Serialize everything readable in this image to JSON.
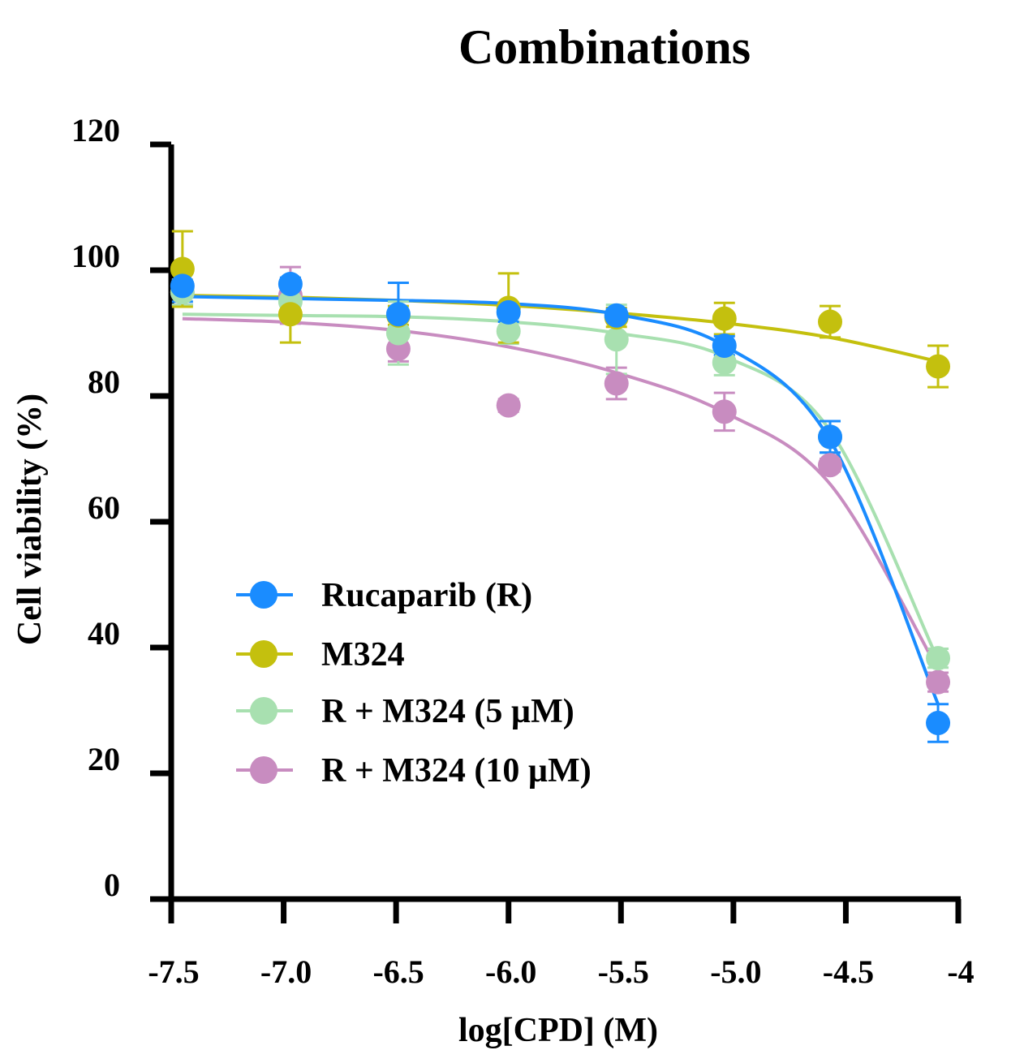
{
  "chart_data": {
    "type": "line",
    "title": "Combinations",
    "xlabel": "log[CPD] (M)",
    "ylabel": "Cell viability (%)",
    "xlim": [
      -7.55,
      -4.0
    ],
    "ylim": [
      0,
      120
    ],
    "x_ticks": [
      -7.5,
      -7.0,
      -6.5,
      -6.0,
      -5.5,
      -5.0,
      -4.5,
      -4.0
    ],
    "x_tick_labels": [
      "-7.5",
      "-7.0",
      "-6.5",
      "-6.0",
      "-5.5",
      "-5.0",
      "-4.5",
      "-4"
    ],
    "y_ticks": [
      0,
      20,
      40,
      60,
      80,
      100,
      120
    ],
    "y_tick_labels": [
      "0",
      "20",
      "40",
      "60",
      "80",
      "100",
      "120"
    ],
    "legend_position": "lower-left",
    "x": [
      -7.45,
      -6.97,
      -6.49,
      -6.0,
      -5.52,
      -5.04,
      -4.57,
      -4.09
    ],
    "series": [
      {
        "name": "Rucaparib (R)",
        "color": "#1a8cff",
        "values": [
          97.5,
          97.8,
          93.0,
          93.3,
          92.8,
          88.0,
          73.5,
          28.0
        ],
        "errors": [
          2.5,
          1.0,
          5.0,
          1.5,
          1.0,
          1.5,
          2.5,
          3.0
        ],
        "fit": [
          95.8,
          95.5,
          95.2,
          94.7,
          93.0,
          88.0,
          73.0,
          31.0
        ]
      },
      {
        "name": "M324",
        "color": "#c4c00e",
        "values": [
          100.2,
          93.0,
          92.8,
          94.0,
          92.5,
          92.3,
          91.8,
          84.7
        ],
        "errors": [
          6.0,
          4.5,
          1.5,
          5.5,
          1.5,
          2.5,
          2.5,
          3.3
        ],
        "fit": [
          96.0,
          95.7,
          95.2,
          94.4,
          93.2,
          91.6,
          89.3,
          85.5
        ]
      },
      {
        "name": "R + M324 (5 µM)",
        "color": "#a8e0b0",
        "values": [
          96.5,
          95.0,
          90.0,
          90.3,
          89.0,
          85.3,
          73.5,
          38.3
        ],
        "errors": [
          2.0,
          3.0,
          5.0,
          2.0,
          5.5,
          2.0,
          2.5,
          1.5
        ],
        "fit": [
          93.0,
          92.8,
          92.6,
          91.8,
          90.0,
          86.3,
          74.5,
          38.0
        ]
      },
      {
        "name": "R + M324 (10 µM)",
        "color": "#c88cc0",
        "values": [
          96.5,
          96.0,
          87.5,
          78.5,
          82.0,
          77.5,
          69.0,
          34.5
        ],
        "errors": [
          2.0,
          4.5,
          2.0,
          1.0,
          2.5,
          3.0,
          1.0,
          1.5
        ],
        "fit": [
          92.3,
          91.7,
          90.4,
          87.8,
          83.7,
          77.4,
          66.0,
          36.5
        ]
      }
    ]
  }
}
